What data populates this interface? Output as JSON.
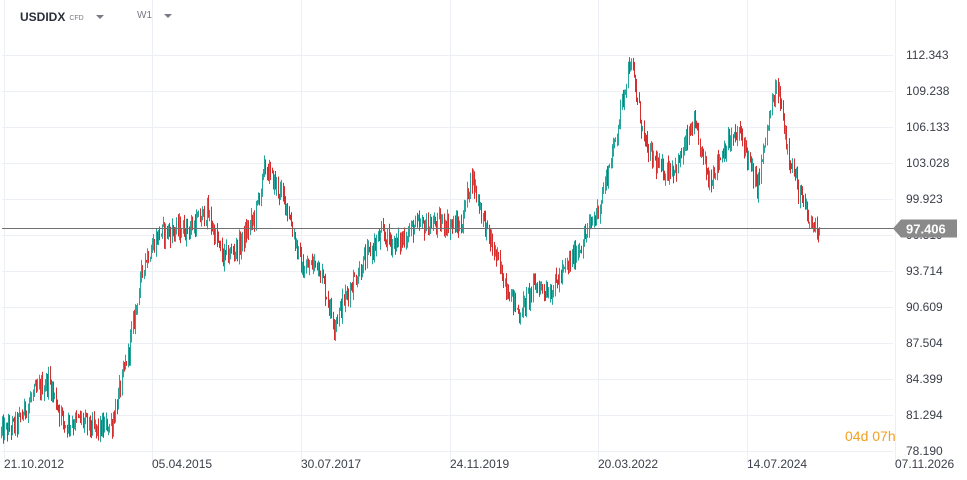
{
  "toolbar": {
    "symbol": "USDIDX",
    "symbol_type": "CFD",
    "timeframe": "W1"
  },
  "countdown": {
    "days": "04",
    "days_unit": "d",
    "hours": "07",
    "hours_unit": "h"
  },
  "colors": {
    "up": "#26a69a",
    "down": "#d32f2f",
    "grid": "#eceff3",
    "price_line": "#707070",
    "price_label_bg": "#8a8a8a",
    "countdown": "#f0a020"
  },
  "chart_data": {
    "type": "candlestick",
    "symbol": "USDIDX",
    "timeframe": "W1",
    "current_price": 97.406,
    "ylim": [
      78.19,
      115.0
    ],
    "y_ticks": [
      "112.343",
      "109.238",
      "106.133",
      "103.028",
      "99.923",
      "96.819",
      "93.714",
      "90.609",
      "87.504",
      "84.399",
      "81.294",
      "78.190"
    ],
    "x_ticks": [
      "21.10.2012",
      "05.04.2015",
      "30.07.2017",
      "24.11.2019",
      "20.03.2022",
      "14.07.2024",
      "07.11.2026"
    ],
    "grid": true,
    "series": [
      {
        "points": [
          [
            "2012-10",
            79.8
          ],
          [
            "2013-01",
            80.5
          ],
          [
            "2013-04",
            83.0
          ],
          [
            "2013-07",
            84.3
          ],
          [
            "2013-10",
            80.5
          ],
          [
            "2014-01",
            80.9
          ],
          [
            "2014-04",
            79.9
          ],
          [
            "2014-07",
            80.6
          ],
          [
            "2014-10",
            86.5
          ],
          [
            "2015-01",
            94.5
          ],
          [
            "2015-04",
            97.0
          ],
          [
            "2015-07",
            97.2
          ],
          [
            "2015-10",
            97.5
          ],
          [
            "2016-01",
            98.8
          ],
          [
            "2016-04",
            94.8
          ],
          [
            "2016-07",
            95.8
          ],
          [
            "2016-10",
            98.4
          ],
          [
            "2016-12",
            102.7
          ],
          [
            "2017-04",
            99.5
          ],
          [
            "2017-07",
            93.8
          ],
          [
            "2017-10",
            94.5
          ],
          [
            "2018-01",
            89.2
          ],
          [
            "2018-04",
            92.3
          ],
          [
            "2018-07",
            94.8
          ],
          [
            "2018-10",
            96.8
          ],
          [
            "2019-01",
            96.0
          ],
          [
            "2019-04",
            97.5
          ],
          [
            "2019-07",
            97.7
          ],
          [
            "2019-10",
            97.9
          ],
          [
            "2020-01",
            97.5
          ],
          [
            "2020-03",
            102.0
          ],
          [
            "2020-06",
            97.0
          ],
          [
            "2020-09",
            93.2
          ],
          [
            "2020-12",
            90.0
          ],
          [
            "2021-03",
            92.5
          ],
          [
            "2021-06",
            92.0
          ],
          [
            "2021-09",
            94.0
          ],
          [
            "2021-12",
            96.2
          ],
          [
            "2022-03",
            99.0
          ],
          [
            "2022-06",
            104.5
          ],
          [
            "2022-09",
            112.0
          ],
          [
            "2022-12",
            104.3
          ],
          [
            "2023-03",
            102.3
          ],
          [
            "2023-06",
            102.8
          ],
          [
            "2023-09",
            106.4
          ],
          [
            "2023-12",
            101.5
          ],
          [
            "2024-03",
            104.5
          ],
          [
            "2024-06",
            105.6
          ],
          [
            "2024-09",
            100.8
          ],
          [
            "2024-12",
            108.3
          ],
          [
            "2025-01",
            109.5
          ],
          [
            "2025-03",
            104.0
          ],
          [
            "2025-05",
            100.5
          ],
          [
            "2025-07",
            97.8
          ],
          [
            "2025-09",
            97.4
          ]
        ]
      }
    ]
  }
}
